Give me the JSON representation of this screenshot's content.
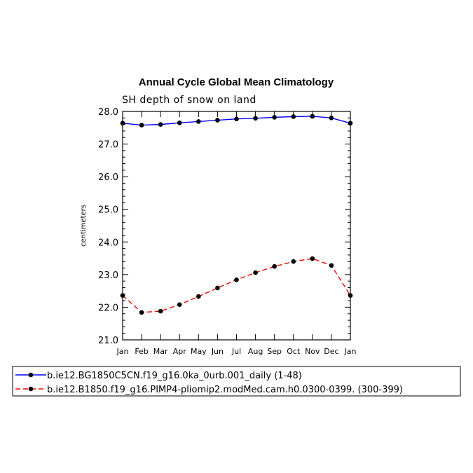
{
  "chart_data": {
    "type": "line",
    "title": "Annual Cycle Global Mean Climatology",
    "subtitle": "SH depth of snow on land",
    "ylabel": "centimeters",
    "xlabel": "",
    "categories": [
      "Jan",
      "Feb",
      "Mar",
      "Apr",
      "May",
      "Jun",
      "Jul",
      "Aug",
      "Sep",
      "Oct",
      "Nov",
      "Dec",
      "Jan"
    ],
    "ylim": [
      21.0,
      28.0
    ],
    "yticks": [
      "21.0",
      "22.0",
      "23.0",
      "24.0",
      "25.0",
      "26.0",
      "27.0",
      "28.0"
    ],
    "grid": false,
    "legend_position": "bottom",
    "series": [
      {
        "name": "b.ie12.BG1850C5CN.f19_g16.0ka_0urb.001_daily (1-48)",
        "color": "#0000ff",
        "dash": "solid",
        "values": [
          27.64,
          27.58,
          27.6,
          27.65,
          27.69,
          27.73,
          27.77,
          27.79,
          27.82,
          27.84,
          27.85,
          27.8,
          27.64
        ]
      },
      {
        "name": "b.ie12.B1850.f19_g16.PIMP4-pliomip2.modMed.cam.h0.0300-0399. (300-399)",
        "color": "#ff0000",
        "dash": "dashed",
        "values": [
          22.36,
          21.84,
          21.88,
          22.08,
          22.33,
          22.59,
          22.84,
          23.06,
          23.25,
          23.4,
          23.49,
          23.28,
          22.36
        ]
      }
    ]
  }
}
